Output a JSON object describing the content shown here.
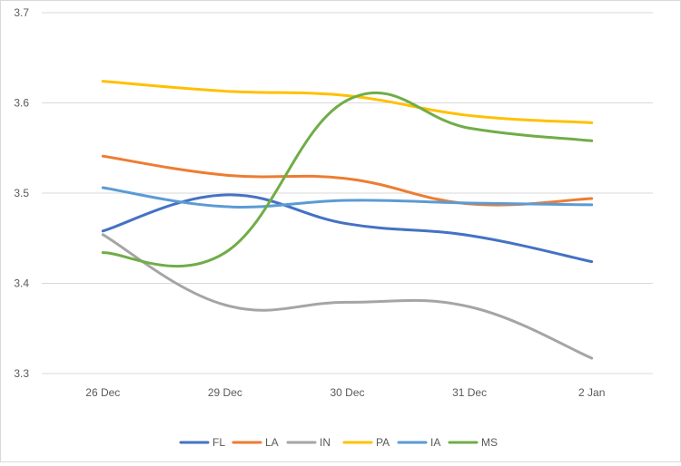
{
  "chart_data": {
    "type": "line",
    "title": "",
    "xlabel": "",
    "ylabel": "",
    "categories": [
      "26 Dec",
      "29 Dec",
      "30 Dec",
      "31 Dec",
      "2 Jan"
    ],
    "ylim": [
      3.3,
      3.7
    ],
    "yticks": [
      3.3,
      3.4,
      3.5,
      3.6,
      3.7
    ],
    "ytick_labels": [
      "3.3",
      "3.4",
      "3.5",
      "3.6",
      "3.7"
    ],
    "grid": true,
    "smooth": true,
    "legend_position": "bottom",
    "series": [
      {
        "name": "FL",
        "color": "#4472C4",
        "values": [
          3.458,
          3.498,
          3.466,
          3.453,
          3.424
        ]
      },
      {
        "name": "LA",
        "color": "#ED7D31",
        "values": [
          3.541,
          3.52,
          3.516,
          3.488,
          3.494
        ]
      },
      {
        "name": "IN",
        "color": "#A5A5A5",
        "values": [
          3.454,
          3.376,
          3.379,
          3.374,
          3.317
        ]
      },
      {
        "name": "PA",
        "color": "#FFC000",
        "values": [
          3.624,
          3.613,
          3.608,
          3.586,
          3.578
        ]
      },
      {
        "name": "IA",
        "color": "#5B9BD5",
        "values": [
          3.506,
          3.485,
          3.492,
          3.489,
          3.487
        ]
      },
      {
        "name": "MS",
        "color": "#70AD47",
        "values": [
          3.434,
          3.434,
          3.603,
          3.572,
          3.558
        ]
      }
    ]
  }
}
